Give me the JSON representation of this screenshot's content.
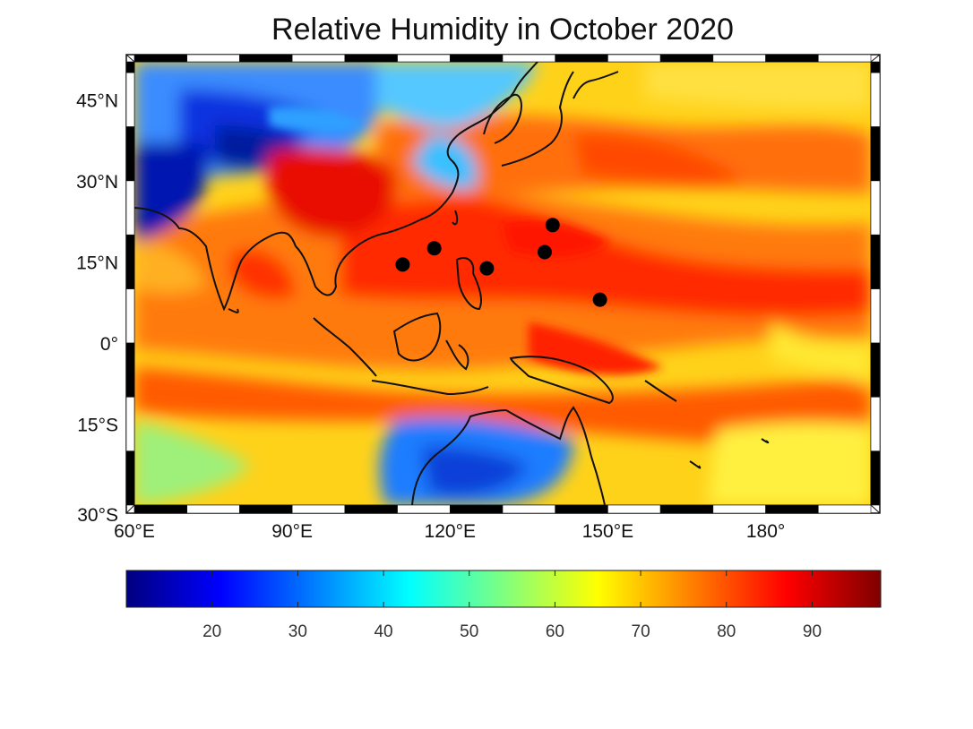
{
  "title": "Relative Humidity in October 2020",
  "map": {
    "lon_range": [
      60,
      200
    ],
    "lat_range": [
      -30,
      52
    ],
    "lon_ticks": [
      {
        "value": 60,
        "label": "60°E"
      },
      {
        "value": 90,
        "label": "90°E"
      },
      {
        "value": 120,
        "label": "120°E"
      },
      {
        "value": 150,
        "label": "150°E"
      },
      {
        "value": 180,
        "label": "180°"
      }
    ],
    "lat_ticks": [
      {
        "value": 45,
        "label": "45°N"
      },
      {
        "value": 30,
        "label": "30°N"
      },
      {
        "value": 15,
        "label": "15°N"
      },
      {
        "value": 0,
        "label": "0°"
      },
      {
        "value": -15,
        "label": "15°S"
      },
      {
        "value": -30,
        "label": "30°S"
      }
    ],
    "markers": [
      {
        "lon": 111,
        "lat": 14.5
      },
      {
        "lon": 117,
        "lat": 17.5
      },
      {
        "lon": 127,
        "lat": 13.8
      },
      {
        "lon": 138,
        "lat": 16.8
      },
      {
        "lon": 139.5,
        "lat": 21.8
      },
      {
        "lon": 148.5,
        "lat": 8
      }
    ]
  },
  "colorbar": {
    "min": 10,
    "max": 98,
    "ticks": [
      20,
      30,
      40,
      50,
      60,
      70,
      80,
      90
    ],
    "colormap": [
      "#00007f",
      "#0000ff",
      "#007fff",
      "#00ffff",
      "#7fff7f",
      "#ffff00",
      "#ff7f00",
      "#ff0000",
      "#7f0000"
    ]
  }
}
